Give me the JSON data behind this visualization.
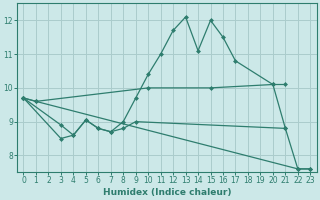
{
  "xlabel": "Humidex (Indice chaleur)",
  "bg_color": "#cce8e8",
  "line_color": "#2e7d6e",
  "grid_color": "#aacccc",
  "xlim": [
    -0.5,
    23.5
  ],
  "ylim": [
    7.5,
    12.5
  ],
  "yticks": [
    8,
    9,
    10,
    11,
    12
  ],
  "xticks": [
    0,
    1,
    2,
    3,
    4,
    5,
    6,
    7,
    8,
    9,
    10,
    11,
    12,
    13,
    14,
    15,
    16,
    17,
    18,
    19,
    20,
    21,
    22,
    23
  ],
  "lines": [
    {
      "x": [
        0,
        1,
        10,
        15,
        20,
        21
      ],
      "y": [
        9.7,
        9.6,
        10.0,
        10.0,
        10.1,
        10.1
      ]
    },
    {
      "x": [
        0,
        3,
        4,
        5,
        6,
        7,
        8,
        9,
        10,
        11,
        12,
        13,
        14,
        15,
        16,
        17,
        20,
        21
      ],
      "y": [
        9.7,
        8.9,
        8.6,
        9.05,
        8.8,
        8.7,
        9.0,
        9.7,
        10.4,
        11.0,
        11.7,
        12.1,
        11.1,
        12.0,
        11.5,
        10.8,
        10.1,
        8.8
      ]
    },
    {
      "x": [
        0,
        3,
        4,
        5,
        6,
        7,
        8,
        9,
        21,
        22,
        23
      ],
      "y": [
        9.7,
        8.5,
        8.6,
        9.05,
        8.8,
        8.7,
        8.8,
        9.0,
        8.8,
        7.6,
        7.6
      ]
    },
    {
      "x": [
        0,
        1,
        22,
        23
      ],
      "y": [
        9.7,
        9.6,
        7.6,
        7.6
      ]
    }
  ]
}
